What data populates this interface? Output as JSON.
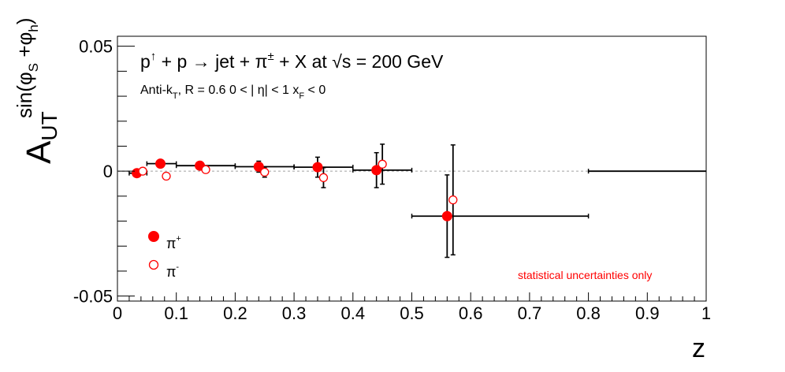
{
  "chart_data": {
    "type": "scatter",
    "title": "p↑ + p → jet + π± + X at √s = 200 GeV",
    "subtitle": "Anti-kT, R = 0.6   0 < |η| < 1   xF < 0",
    "xlabel": "z",
    "ylabel": "A_UT^sin(φS+φh)",
    "xlim": [
      0,
      1
    ],
    "ylim": [
      -0.052,
      0.054
    ],
    "x_ticks": [
      "0",
      "0.1",
      "0.2",
      "0.3",
      "0.4",
      "0.5",
      "0.6",
      "0.7",
      "0.8",
      "0.9",
      "1"
    ],
    "y_ticks": [
      "-0.05",
      "0",
      "0.05"
    ],
    "grid": false,
    "zero_line": true,
    "legend_position": "bottom-left",
    "annotation": "statistical uncertainties only",
    "colors": {
      "series": "#ff0000",
      "errorbars": "#000000",
      "zero_line": "#bbbbbb",
      "annotation": "#ff0000"
    },
    "series": [
      {
        "name": "π+",
        "marker": "filled-circle",
        "points": [
          {
            "x": 0.033,
            "y": -0.0008,
            "xerr": [
              0.013,
              0.017
            ],
            "yerr": 0.0008
          },
          {
            "x": 0.073,
            "y": 0.003,
            "xerr": [
              0.023,
              0.027
            ],
            "yerr": 0.0012
          },
          {
            "x": 0.14,
            "y": 0.0022,
            "xerr": [
              0.04,
              0.06
            ],
            "yerr": 0.0012
          },
          {
            "x": 0.24,
            "y": 0.0018,
            "xerr": [
              0.04,
              0.06
            ],
            "yerr": 0.0022
          },
          {
            "x": 0.34,
            "y": 0.0016,
            "xerr": [
              0.04,
              0.06
            ],
            "yerr": 0.004
          },
          {
            "x": 0.44,
            "y": 0.0004,
            "xerr": [
              0.04,
              0.06
            ],
            "yerr": 0.007
          },
          {
            "x": 0.56,
            "y": -0.018,
            "xerr": [
              0.06,
              0.24
            ],
            "yerr": 0.0165
          }
        ]
      },
      {
        "name": "π-",
        "marker": "open-circle",
        "points": [
          {
            "x": 0.043,
            "y": 0.0,
            "xerr": null,
            "yerr": 0.0008
          },
          {
            "x": 0.083,
            "y": -0.002,
            "xerr": null,
            "yerr": 0.0012
          },
          {
            "x": 0.15,
            "y": 0.0006,
            "xerr": null,
            "yerr": 0.001
          },
          {
            "x": 0.25,
            "y": -0.0004,
            "xerr": null,
            "yerr": 0.002
          },
          {
            "x": 0.35,
            "y": -0.0026,
            "xerr": null,
            "yerr": 0.004
          },
          {
            "x": 0.45,
            "y": 0.0028,
            "xerr": null,
            "yerr": 0.008
          },
          {
            "x": 0.57,
            "y": -0.0115,
            "xerr": null,
            "yerr": 0.022
          }
        ]
      }
    ],
    "extra_segments": [
      {
        "x0": 0.8,
        "x1": 1.0,
        "y": 0.0
      }
    ]
  }
}
